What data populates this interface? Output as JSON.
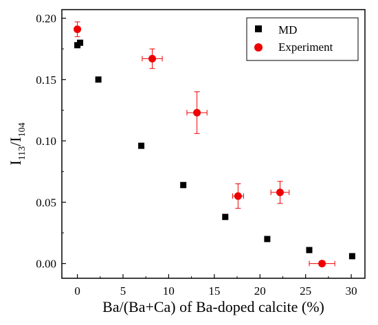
{
  "chart_data": {
    "type": "scatter",
    "xlabel": "Ba/(Ba+Ca) of Ba-doped calcite (%)",
    "ylabel_main": "I",
    "ylabel_sub1": "113",
    "ylabel_sep": "/I",
    "ylabel_sub2": "104",
    "xlim": [
      -1.7,
      31.5
    ],
    "ylim": [
      -0.012,
      0.207
    ],
    "xticks": [
      0,
      5,
      10,
      15,
      20,
      25,
      30
    ],
    "yticks": [
      0.0,
      0.05,
      0.1,
      0.15,
      0.2
    ],
    "xtick_labels": [
      "0",
      "5",
      "10",
      "15",
      "20",
      "25",
      "30"
    ],
    "ytick_labels": [
      "0.00",
      "0.05",
      "0.10",
      "0.15",
      "0.20"
    ],
    "legend_position": "top-right",
    "series": [
      {
        "name": "MD",
        "marker": "square",
        "color": "#000000",
        "points": [
          {
            "x": 0.0,
            "y": 0.178
          },
          {
            "x": 0.3,
            "y": 0.18
          },
          {
            "x": 2.3,
            "y": 0.15
          },
          {
            "x": 7.0,
            "y": 0.096
          },
          {
            "x": 11.6,
            "y": 0.064
          },
          {
            "x": 16.2,
            "y": 0.038
          },
          {
            "x": 20.8,
            "y": 0.02
          },
          {
            "x": 25.4,
            "y": 0.011
          },
          {
            "x": 30.1,
            "y": 0.006
          }
        ]
      },
      {
        "name": "Experiment",
        "marker": "circle",
        "color": "#ee0000",
        "points": [
          {
            "x": 0.0,
            "y": 0.191,
            "xerr": 0.0,
            "yerr": 0.006
          },
          {
            "x": 8.2,
            "y": 0.167,
            "xerr": 1.1,
            "yerr": 0.008
          },
          {
            "x": 13.1,
            "y": 0.123,
            "xerr": 1.1,
            "yerr": 0.017
          },
          {
            "x": 17.6,
            "y": 0.055,
            "xerr": 0.6,
            "yerr": 0.01
          },
          {
            "x": 22.2,
            "y": 0.058,
            "xerr": 1.0,
            "yerr": 0.009
          },
          {
            "x": 26.8,
            "y": 0.0,
            "xerr": 1.4,
            "yerr": 0.0
          }
        ]
      }
    ]
  }
}
